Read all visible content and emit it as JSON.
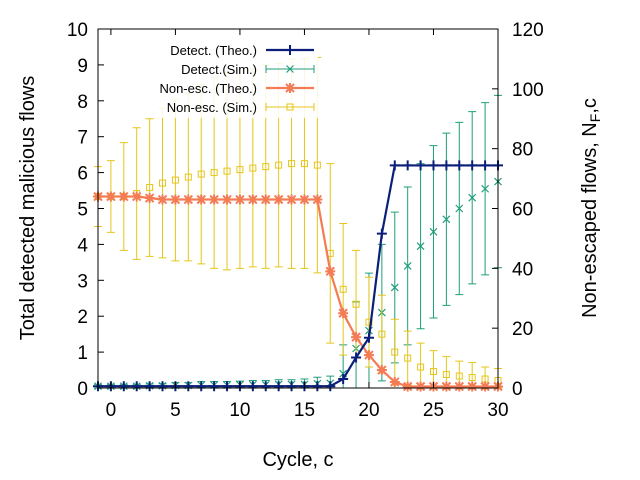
{
  "chart_data": {
    "type": "line",
    "title": "",
    "xlabel": "Cycle, c",
    "ylabel_left": "Total detected malicious flows",
    "ylabel_right_main": "Non-escaped flows, N",
    "ylabel_right_sub": "F",
    "ylabel_right_tail": ",c",
    "xlim": [
      -1,
      30
    ],
    "ylim_left": [
      0,
      10
    ],
    "ylim_right": [
      0,
      120
    ],
    "x_ticks": [
      0,
      5,
      10,
      15,
      20,
      25,
      30
    ],
    "x_tick_labels": [
      "0",
      "5",
      "10",
      "15",
      "20",
      "25",
      "30"
    ],
    "y_left_ticks": [
      0,
      1,
      2,
      3,
      4,
      5,
      6,
      7,
      8,
      9,
      10
    ],
    "y_left_tick_labels": [
      "0",
      "1",
      "2",
      "3",
      "4",
      "5",
      "6",
      "7",
      "8",
      "9",
      "10"
    ],
    "y_right_ticks": [
      0,
      20,
      40,
      60,
      80,
      100,
      120
    ],
    "y_right_tick_labels": [
      "0",
      "20",
      "40",
      "60",
      "80",
      "100",
      "120"
    ],
    "legend_position": "top-left",
    "x": [
      -1,
      0,
      1,
      2,
      3,
      4,
      5,
      6,
      7,
      8,
      9,
      10,
      11,
      12,
      13,
      14,
      15,
      16,
      17,
      18,
      19,
      20,
      21,
      22,
      23,
      24,
      25,
      26,
      27,
      28,
      29,
      30
    ],
    "series": [
      {
        "name": "Detect. (Theo.)",
        "axis": "left",
        "color": "#0b1f7a",
        "marker": "plus",
        "values": [
          0.05,
          0.05,
          0.05,
          0.05,
          0.05,
          0.05,
          0.05,
          0.05,
          0.05,
          0.05,
          0.05,
          0.05,
          0.05,
          0.05,
          0.05,
          0.05,
          0.05,
          0.05,
          0.05,
          0.25,
          0.85,
          1.4,
          4.3,
          6.2,
          6.2,
          6.2,
          6.2,
          6.2,
          6.2,
          6.2,
          6.2,
          6.2
        ]
      },
      {
        "name": "Detect.(Sim.)",
        "axis": "left",
        "color": "#1f9e7a",
        "marker": "x",
        "values": [
          0.05,
          0.05,
          0.05,
          0.05,
          0.06,
          0.06,
          0.07,
          0.07,
          0.08,
          0.08,
          0.08,
          0.09,
          0.09,
          0.09,
          0.1,
          0.1,
          0.1,
          0.12,
          0.13,
          0.4,
          1.1,
          1.6,
          2.1,
          2.8,
          3.4,
          3.95,
          4.35,
          4.7,
          5.0,
          5.3,
          5.55,
          5.75
        ],
        "error": [
          0.05,
          0.05,
          0.05,
          0.05,
          0.05,
          0.06,
          0.08,
          0.08,
          0.1,
          0.1,
          0.1,
          0.1,
          0.12,
          0.12,
          0.13,
          0.13,
          0.15,
          0.18,
          0.2,
          0.8,
          1.3,
          1.6,
          1.9,
          2.1,
          2.2,
          2.3,
          2.4,
          2.4,
          2.4,
          2.4,
          2.4,
          2.4
        ]
      },
      {
        "name": "Non-esc. (Theo.)",
        "axis": "right",
        "color": "#f47c55",
        "marker": "star",
        "values": [
          64,
          64,
          64,
          64,
          63.5,
          63,
          63,
          63,
          63,
          63,
          63,
          63,
          63,
          63,
          63,
          63,
          63,
          63,
          39,
          25,
          17,
          11,
          6,
          2,
          0.5,
          0.5,
          0.5,
          0.5,
          0.5,
          0.5,
          0.5,
          0.5
        ]
      },
      {
        "name": "Non-esc. (Sim.)",
        "axis": "right",
        "color": "#e5c619",
        "marker": "square",
        "values": [
          64,
          64,
          64,
          65,
          67,
          68.5,
          69.5,
          70.5,
          71.5,
          72,
          72.5,
          73,
          73.5,
          74,
          74.5,
          75,
          75,
          74.5,
          45,
          33,
          28,
          22,
          18,
          12,
          10,
          7,
          5.5,
          4.5,
          4,
          3.5,
          3,
          2.5
        ],
        "error": [
          10,
          12,
          18,
          22,
          23,
          25,
          27,
          28,
          30,
          32,
          33,
          33,
          33,
          34,
          34,
          35,
          35,
          36,
          30,
          22,
          18,
          15,
          13,
          11,
          9,
          8,
          7,
          6,
          5,
          5,
          4,
          4
        ]
      }
    ]
  }
}
